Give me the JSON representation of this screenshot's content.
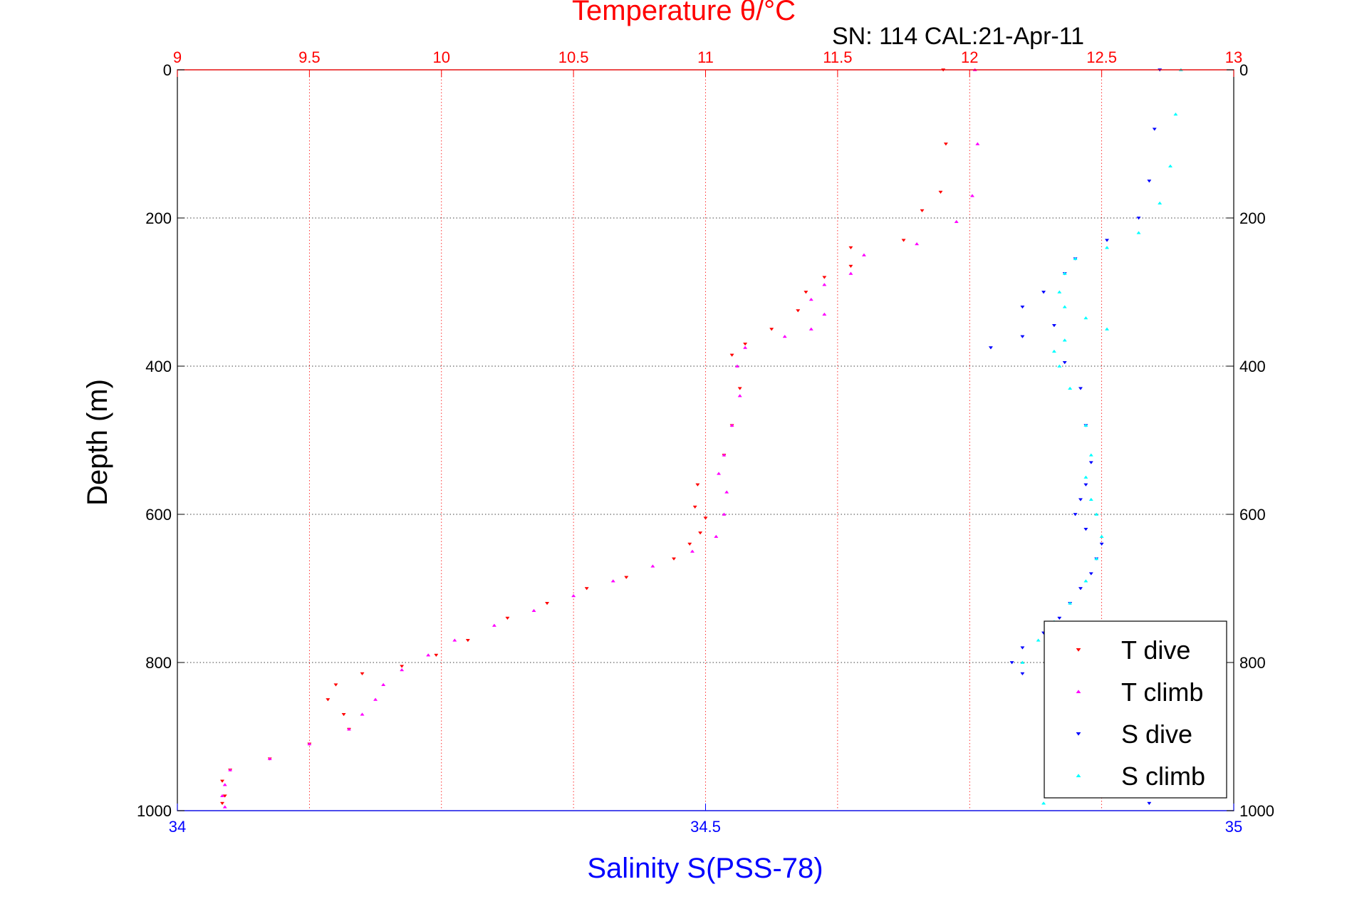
{
  "chart_data": {
    "type": "scatter",
    "title": "Temperature θ/°C",
    "subtitle": "SN: 114  CAL:21-Apr-11",
    "top_axis": {
      "label": "Temperature θ/°C",
      "range": [
        9,
        13
      ],
      "ticks": [
        9,
        9.5,
        10,
        10.5,
        11,
        11.5,
        12,
        12.5,
        13
      ],
      "tick_labels": [
        "9",
        "9.5",
        "10",
        "10.5",
        "11",
        "11.5",
        "12",
        "12.5",
        "13"
      ],
      "color": "#ff0000"
    },
    "bottom_axis": {
      "label": "Salinity S(PSS-78)",
      "range": [
        34,
        35
      ],
      "ticks": [
        34,
        34.5,
        35
      ],
      "tick_labels": [
        "34",
        "34.5",
        "35"
      ],
      "color": "#0000ff"
    },
    "y_axis": {
      "label": "Depth (m)",
      "range": [
        0,
        1000
      ],
      "reversed": true,
      "ticks": [
        0,
        200,
        400,
        600,
        800,
        1000
      ],
      "tick_labels": [
        "0",
        "200",
        "400",
        "600",
        "800",
        "1000"
      ]
    },
    "grid": true,
    "legend": {
      "placement": "bottom-right"
    },
    "series": [
      {
        "name": "T dive",
        "axis": "top",
        "color": "#ff0000",
        "marker": "triangle-down",
        "points": [
          [
            11.9,
            0
          ],
          [
            11.91,
            100
          ],
          [
            11.89,
            165
          ],
          [
            11.82,
            190
          ],
          [
            11.75,
            230
          ],
          [
            11.55,
            240
          ],
          [
            11.55,
            265
          ],
          [
            11.45,
            280
          ],
          [
            11.38,
            300
          ],
          [
            11.35,
            325
          ],
          [
            11.25,
            350
          ],
          [
            11.15,
            370
          ],
          [
            11.1,
            385
          ],
          [
            11.13,
            430
          ],
          [
            11.1,
            480
          ],
          [
            11.07,
            520
          ],
          [
            10.97,
            560
          ],
          [
            10.96,
            590
          ],
          [
            11.0,
            605
          ],
          [
            10.98,
            625
          ],
          [
            10.94,
            640
          ],
          [
            10.88,
            660
          ],
          [
            10.7,
            685
          ],
          [
            10.55,
            700
          ],
          [
            10.4,
            720
          ],
          [
            10.25,
            740
          ],
          [
            10.1,
            770
          ],
          [
            9.98,
            790
          ],
          [
            9.85,
            805
          ],
          [
            9.7,
            815
          ],
          [
            9.6,
            830
          ],
          [
            9.57,
            850
          ],
          [
            9.63,
            870
          ],
          [
            9.65,
            890
          ],
          [
            9.5,
            910
          ],
          [
            9.35,
            930
          ],
          [
            9.2,
            945
          ],
          [
            9.17,
            960
          ],
          [
            9.18,
            980
          ],
          [
            9.17,
            990
          ]
        ]
      },
      {
        "name": "T climb",
        "axis": "top",
        "color": "#ff00ff",
        "marker": "triangle-up",
        "points": [
          [
            12.02,
            0
          ],
          [
            12.03,
            100
          ],
          [
            12.01,
            170
          ],
          [
            11.95,
            205
          ],
          [
            11.8,
            235
          ],
          [
            11.6,
            250
          ],
          [
            11.55,
            275
          ],
          [
            11.45,
            290
          ],
          [
            11.4,
            310
          ],
          [
            11.45,
            330
          ],
          [
            11.4,
            350
          ],
          [
            11.3,
            360
          ],
          [
            11.15,
            375
          ],
          [
            11.12,
            400
          ],
          [
            11.13,
            440
          ],
          [
            11.1,
            480
          ],
          [
            11.07,
            520
          ],
          [
            11.05,
            545
          ],
          [
            11.08,
            570
          ],
          [
            11.07,
            600
          ],
          [
            11.04,
            630
          ],
          [
            10.95,
            650
          ],
          [
            10.8,
            670
          ],
          [
            10.65,
            690
          ],
          [
            10.5,
            710
          ],
          [
            10.35,
            730
          ],
          [
            10.2,
            750
          ],
          [
            10.05,
            770
          ],
          [
            9.95,
            790
          ],
          [
            9.85,
            810
          ],
          [
            9.78,
            830
          ],
          [
            9.75,
            850
          ],
          [
            9.7,
            870
          ],
          [
            9.65,
            890
          ],
          [
            9.5,
            910
          ],
          [
            9.35,
            930
          ],
          [
            9.2,
            945
          ],
          [
            9.18,
            965
          ],
          [
            9.17,
            980
          ],
          [
            9.18,
            995
          ]
        ]
      },
      {
        "name": "S dive",
        "axis": "bottom",
        "color": "#0000ff",
        "marker": "triangle-down",
        "points": [
          [
            34.93,
            0
          ],
          [
            34.925,
            80
          ],
          [
            34.92,
            150
          ],
          [
            34.91,
            200
          ],
          [
            34.88,
            230
          ],
          [
            34.85,
            255
          ],
          [
            34.84,
            275
          ],
          [
            34.82,
            300
          ],
          [
            34.8,
            320
          ],
          [
            34.83,
            345
          ],
          [
            34.8,
            360
          ],
          [
            34.77,
            375
          ],
          [
            34.84,
            395
          ],
          [
            34.855,
            430
          ],
          [
            34.86,
            480
          ],
          [
            34.865,
            530
          ],
          [
            34.86,
            560
          ],
          [
            34.855,
            580
          ],
          [
            34.85,
            600
          ],
          [
            34.86,
            620
          ],
          [
            34.875,
            640
          ],
          [
            34.87,
            660
          ],
          [
            34.865,
            680
          ],
          [
            34.855,
            700
          ],
          [
            34.845,
            720
          ],
          [
            34.835,
            740
          ],
          [
            34.82,
            760
          ],
          [
            34.8,
            780
          ],
          [
            34.79,
            800
          ],
          [
            34.8,
            815
          ],
          [
            34.92,
            990
          ]
        ]
      },
      {
        "name": "S climb",
        "axis": "bottom",
        "color": "#00ffff",
        "marker": "triangle-up",
        "points": [
          [
            34.95,
            0
          ],
          [
            34.945,
            60
          ],
          [
            34.94,
            130
          ],
          [
            34.93,
            180
          ],
          [
            34.91,
            220
          ],
          [
            34.88,
            240
          ],
          [
            34.85,
            255
          ],
          [
            34.84,
            275
          ],
          [
            34.835,
            300
          ],
          [
            34.84,
            320
          ],
          [
            34.86,
            335
          ],
          [
            34.88,
            350
          ],
          [
            34.84,
            365
          ],
          [
            34.83,
            380
          ],
          [
            34.835,
            400
          ],
          [
            34.845,
            430
          ],
          [
            34.86,
            480
          ],
          [
            34.865,
            520
          ],
          [
            34.86,
            550
          ],
          [
            34.865,
            580
          ],
          [
            34.87,
            600
          ],
          [
            34.875,
            630
          ],
          [
            34.87,
            660
          ],
          [
            34.86,
            690
          ],
          [
            34.845,
            720
          ],
          [
            34.83,
            745
          ],
          [
            34.815,
            770
          ],
          [
            34.8,
            800
          ],
          [
            34.82,
            990
          ]
        ]
      }
    ]
  }
}
